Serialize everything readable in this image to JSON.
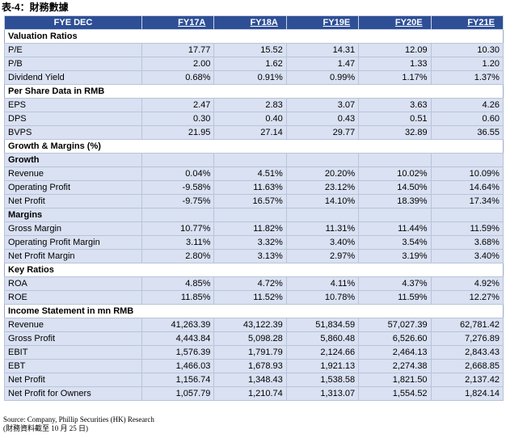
{
  "title": "表-4：財務數據",
  "header": {
    "label": "FYE DEC",
    "years": [
      "FY17A",
      "FY18A",
      "FY19E",
      "FY20E",
      "FY21E"
    ]
  },
  "rows": [
    {
      "kind": "section",
      "label": "Valuation Ratios"
    },
    {
      "kind": "data",
      "label": "P/E",
      "values": [
        "17.77",
        "15.52",
        "14.31",
        "12.09",
        "10.30"
      ]
    },
    {
      "kind": "data",
      "label": "P/B",
      "values": [
        "2.00",
        "1.62",
        "1.47",
        "1.33",
        "1.20"
      ]
    },
    {
      "kind": "data",
      "label": "Dividend Yield",
      "values": [
        "0.68%",
        "0.91%",
        "0.99%",
        "1.17%",
        "1.37%"
      ]
    },
    {
      "kind": "section",
      "label": "Per Share Data in RMB"
    },
    {
      "kind": "data",
      "label": "EPS",
      "values": [
        "2.47",
        "2.83",
        "3.07",
        "3.63",
        "4.26"
      ]
    },
    {
      "kind": "data",
      "label": "DPS",
      "values": [
        "0.30",
        "0.40",
        "0.43",
        "0.51",
        "0.60"
      ]
    },
    {
      "kind": "data",
      "label": "BVPS",
      "values": [
        "21.95",
        "27.14",
        "29.77",
        "32.89",
        "36.55"
      ]
    },
    {
      "kind": "section",
      "label": "Growth & Margins (%)"
    },
    {
      "kind": "sub",
      "label": "Growth"
    },
    {
      "kind": "data",
      "label": "Revenue",
      "values": [
        "0.04%",
        "4.51%",
        "20.20%",
        "10.02%",
        "10.09%"
      ]
    },
    {
      "kind": "data",
      "label": "Operating Profit",
      "values": [
        "-9.58%",
        "11.63%",
        "23.12%",
        "14.50%",
        "14.64%"
      ]
    },
    {
      "kind": "data",
      "label": "Net Profit",
      "values": [
        "-9.75%",
        "16.57%",
        "14.10%",
        "18.39%",
        "17.34%"
      ]
    },
    {
      "kind": "sub",
      "label": "Margins"
    },
    {
      "kind": "data",
      "label": "Gross Margin",
      "values": [
        "10.77%",
        "11.82%",
        "11.31%",
        "11.44%",
        "11.59%"
      ]
    },
    {
      "kind": "data",
      "label": "Operating Profit Margin",
      "values": [
        "3.11%",
        "3.32%",
        "3.40%",
        "3.54%",
        "3.68%"
      ]
    },
    {
      "kind": "data",
      "label": "Net Profit Margin",
      "values": [
        "2.80%",
        "3.13%",
        "2.97%",
        "3.19%",
        "3.40%"
      ]
    },
    {
      "kind": "section",
      "label": "Key Ratios"
    },
    {
      "kind": "data",
      "label": "ROA",
      "values": [
        "4.85%",
        "4.72%",
        "4.11%",
        "4.37%",
        "4.92%"
      ]
    },
    {
      "kind": "data",
      "label": "ROE",
      "values": [
        "11.85%",
        "11.52%",
        "10.78%",
        "11.59%",
        "12.27%"
      ]
    },
    {
      "kind": "section",
      "label": "Income Statement in mn RMB"
    },
    {
      "kind": "data",
      "label": "Revenue",
      "values": [
        "41,263.39",
        "43,122.39",
        "51,834.59",
        "57,027.39",
        "62,781.42"
      ]
    },
    {
      "kind": "data",
      "label": "Gross Profit",
      "values": [
        "4,443.84",
        "5,098.28",
        "5,860.48",
        "6,526.60",
        "7,276.89"
      ]
    },
    {
      "kind": "data",
      "label": "EBIT",
      "values": [
        "1,576.39",
        "1,791.79",
        "2,124.66",
        "2,464.13",
        "2,843.43"
      ]
    },
    {
      "kind": "data",
      "label": "EBT",
      "values": [
        "1,466.03",
        "1,678.93",
        "1,921.13",
        "2,274.38",
        "2,668.85"
      ]
    },
    {
      "kind": "data",
      "label": "Net Profit",
      "values": [
        "1,156.74",
        "1,348.43",
        "1,538.58",
        "1,821.50",
        "2,137.42"
      ]
    },
    {
      "kind": "data",
      "label": "Net Profit for Owners",
      "values": [
        "1,057.79",
        "1,210.74",
        "1,313.07",
        "1,554.52",
        "1,824.14"
      ]
    }
  ],
  "source": "Source: Company, Phillip Securities (HK) Research",
  "note": "(財務資料截至 10 月 25 日)"
}
